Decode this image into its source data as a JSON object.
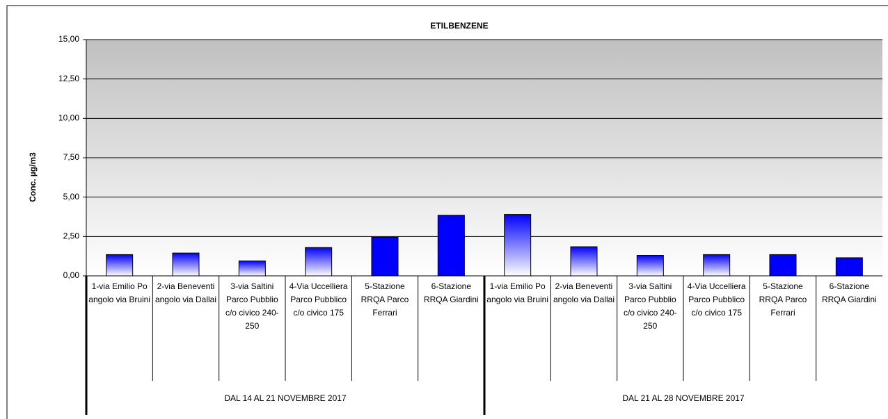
{
  "chart_data": {
    "type": "bar",
    "title": "ETILBENZENE",
    "y_label": "Conc. µg/m3",
    "categories": [
      "1-via Emilio Po angolo via Bruini",
      "2-via Beneventi angolo via Dallai",
      "3-via Saltini Parco Pubblio c/o civico 240-250",
      "4-Via Uccelliera Parco Pubblico c/o civico 175",
      "5-Stazione RRQA Parco Ferrari",
      "6-Stazione RRQA Giardini",
      "1-via Emilio Po angolo via Bruini",
      "2-via Beneventi angolo via Dallai",
      "3-via Saltini Parco Pubblio c/o civico 240-250",
      "4-Via Uccelliera Parco Pubblico c/o civico 175",
      "5-Stazione RRQA Parco Ferrari",
      "6-Stazione RRQA Giardini"
    ],
    "groups": [
      "DAL 14 AL 21 NOVEMBRE 2017",
      "DAL 21 AL 28 NOVEMBRE 2017"
    ],
    "values": [
      1.35,
      1.45,
      0.95,
      1.8,
      2.45,
      3.85,
      3.9,
      1.85,
      1.3,
      1.35,
      1.35,
      1.15
    ],
    "color": "#0000ff",
    "bar_fill": [
      "gradient",
      "gradient",
      "gradient",
      "gradient",
      "solid",
      "solid",
      "gradient",
      "gradient",
      "gradient",
      "gradient",
      "solid",
      "solid"
    ],
    "ylim": [
      0,
      15
    ],
    "yticks": [
      {
        "value": 0,
        "label": "0,00"
      },
      {
        "value": 2.5,
        "label": "2,50"
      },
      {
        "value": 5,
        "label": "5,00"
      },
      {
        "value": 7.5,
        "label": "7,50"
      },
      {
        "value": 10,
        "label": "10,00"
      },
      {
        "value": 12.5,
        "label": "12,50"
      },
      {
        "value": 15,
        "label": "15,00"
      }
    ],
    "grid": true
  }
}
